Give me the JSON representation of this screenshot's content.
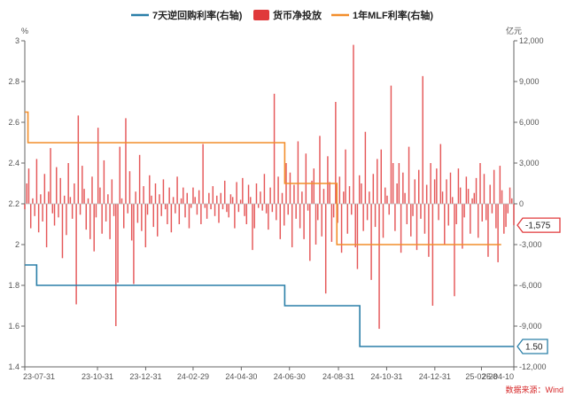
{
  "chart_data": {
    "type": "bar",
    "legend": {
      "position": "top",
      "items": [
        {
          "label": "7天逆回购利率(右轴)",
          "kind": "line",
          "color": "#2a7fa8"
        },
        {
          "label": "货币净投放",
          "kind": "bar",
          "color": "#e0393b"
        },
        {
          "label": "1年MLF利率(右轴)",
          "kind": "line",
          "color": "#f28e2b"
        }
      ]
    },
    "left_axis": {
      "unit": "%",
      "ticks": [
        "3",
        "2.8",
        "2.6",
        "2.4",
        "2.2",
        "2",
        "1.8",
        "1.6",
        "1.4"
      ],
      "range": [
        1.4,
        3.0
      ]
    },
    "right_axis": {
      "unit": "亿元",
      "ticks": [
        "12,000",
        "9,000",
        "6,000",
        "3,000",
        "0",
        "-3,000",
        "-6,000",
        "-9,000",
        "-12,000"
      ],
      "range": [
        -12000,
        12000
      ]
    },
    "x_axis": {
      "ticks": [
        "23-07-31",
        "23-10-31",
        "23-12-31",
        "24-02-29",
        "24-04-30",
        "24-06-30",
        "24-08-31",
        "24-10-31",
        "24-12-31",
        "25-02-28",
        "25-04-10"
      ]
    },
    "series": [
      {
        "name": "7天逆回购利率(右轴)",
        "kind": "line",
        "color": "#2a7fa8",
        "points": [
          [
            "2023-07-31",
            1.9
          ],
          [
            "2023-08-15",
            1.9
          ],
          [
            "2023-08-15",
            1.8
          ],
          [
            "2024-06-24",
            1.8
          ],
          [
            "2024-06-24",
            1.7
          ],
          [
            "2024-09-27",
            1.7
          ],
          [
            "2024-09-27",
            1.5
          ],
          [
            "2025-04-10",
            1.5
          ]
        ],
        "last_value_label": "1.50"
      },
      {
        "name": "1年MLF利率(右轴)",
        "kind": "line",
        "color": "#f28e2b",
        "points": [
          [
            "2023-07-31",
            2.65
          ],
          [
            "2023-08-04",
            2.65
          ],
          [
            "2023-08-04",
            2.5
          ],
          [
            "2024-06-24",
            2.5
          ],
          [
            "2024-06-24",
            2.3
          ],
          [
            "2024-08-29",
            2.3
          ],
          [
            "2024-08-29",
            2.0
          ],
          [
            "2025-03-25",
            2.0
          ]
        ]
      },
      {
        "name": "货币净投放",
        "kind": "bar",
        "color": "#e0393b",
        "axis": "right",
        "dates": [
          "2023-07-31",
          "2025-04-10"
        ],
        "values": [
          -400,
          1500,
          2600,
          -1800,
          400,
          -900,
          3300,
          -2100,
          700,
          -1300,
          2200,
          -3200,
          900,
          4100,
          -700,
          -1600,
          2700,
          -1000,
          1900,
          -4000,
          600,
          -2300,
          3000,
          500,
          -1100,
          1500,
          -7400,
          6500,
          -800,
          2800,
          1100,
          -1900,
          400,
          -2600,
          2000,
          -3500,
          -1000,
          5600,
          1200,
          -2200,
          3200,
          -1300,
          700,
          -2600,
          1800,
          -900,
          -9000,
          -5800,
          4200,
          400,
          -1800,
          6300,
          -700,
          2400,
          -2700,
          -5900,
          900,
          -1400,
          3600,
          -2000,
          1300,
          -3200,
          -800,
          2100,
          600,
          -1700,
          1500,
          -2400,
          700,
          -900,
          1800,
          -400,
          -1500,
          1200,
          -2100,
          500,
          -700,
          2000,
          -1500,
          400,
          1200,
          -1000,
          800,
          -1800,
          -300,
          1200,
          500,
          -800,
          1000,
          -1500,
          4400,
          -300,
          -1100,
          800,
          -400,
          1300,
          -900,
          600,
          -1400,
          800,
          -400,
          1700,
          -600,
          -1000,
          700,
          500,
          -1800,
          1600,
          -600,
          300,
          1900,
          -900,
          -1500,
          1400,
          500,
          -3400,
          -1800,
          1500,
          -300,
          900,
          -500,
          2200,
          -700,
          -1900,
          1200,
          -600,
          8100,
          -1200,
          2000,
          -2600,
          800,
          -1600,
          3000,
          -800,
          2300,
          -3200,
          1400,
          -1100,
          4600,
          -1800,
          900,
          -2600,
          3700,
          -500,
          -4200,
          1700,
          2600,
          -3000,
          -1200,
          5000,
          -2400,
          1100,
          -6600,
          3500,
          1600,
          -2800,
          -1000,
          7500,
          -1400,
          2000,
          -3600,
          900,
          4000,
          -2200,
          1300,
          -800,
          11700,
          -3200,
          -4800,
          2100,
          1500,
          -2000,
          5300,
          -1200,
          900,
          -5600,
          2200,
          -1700,
          3300,
          -9200,
          4000,
          -2500,
          1200,
          600,
          -800,
          8700,
          3000,
          -2000,
          1500,
          3000,
          -3600,
          2300,
          800,
          -1500,
          4200,
          -2400,
          -900,
          1800,
          -3400,
          2500,
          -1100,
          9400,
          -2200,
          1400,
          -3900,
          3000,
          -7500,
          1800,
          2600,
          -1200,
          4400,
          900,
          -3000,
          1800,
          -1600,
          2300,
          500,
          -6800,
          -1500,
          2600,
          1200,
          -3300,
          -1000,
          2000,
          1100,
          -2200,
          400,
          800,
          1900,
          -2500,
          3000,
          -1300,
          2200,
          -1200,
          -3900,
          1400,
          -700,
          2500,
          -1800,
          -4300,
          2800,
          1000,
          -2200,
          -1700,
          -700,
          1200,
          400,
          -1575
        ]
      }
    ],
    "tags": {
      "bar_last": "-1,575",
      "reverse_repo_last": "1.50"
    },
    "source": "数据来源：Wind"
  }
}
